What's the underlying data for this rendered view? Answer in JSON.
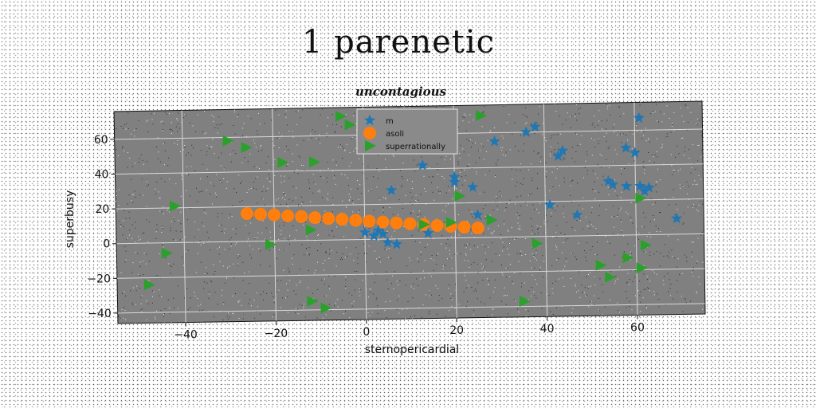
{
  "page": {
    "title": "1 parenetic"
  },
  "chart_data": {
    "type": "scatter",
    "title": "uncontagious",
    "xlabel": "sternopericardial",
    "ylabel": "superbusy",
    "xlim": [
      -55,
      75
    ],
    "ylim": [
      -46,
      76
    ],
    "xticks": [
      -40,
      -20,
      0,
      20,
      40,
      60
    ],
    "yticks": [
      -40,
      -20,
      0,
      20,
      40,
      60
    ],
    "grid": true,
    "legend_position": "top-center",
    "background_color": "#808080",
    "series": [
      {
        "name": "m",
        "marker": "star",
        "color": "#1f77b4",
        "points": [
          [
            5,
            -2
          ],
          [
            4,
            3
          ],
          [
            3,
            5
          ],
          [
            0,
            4
          ],
          [
            2,
            2
          ],
          [
            13,
            42
          ],
          [
            20,
            35
          ],
          [
            20,
            32
          ],
          [
            24,
            29
          ],
          [
            6,
            28
          ],
          [
            29,
            55
          ],
          [
            36,
            60
          ],
          [
            38,
            63
          ],
          [
            43,
            46
          ],
          [
            44,
            49
          ],
          [
            41,
            18
          ],
          [
            47,
            12
          ],
          [
            54,
            31
          ],
          [
            55,
            29
          ],
          [
            58,
            28
          ],
          [
            58,
            50
          ],
          [
            60,
            47
          ],
          [
            61,
            28
          ],
          [
            62,
            25
          ],
          [
            63,
            27
          ],
          [
            61,
            67
          ],
          [
            69,
            9
          ],
          [
            25,
            13
          ],
          [
            14,
            3
          ],
          [
            7,
            -3
          ]
        ]
      },
      {
        "name": "asoli",
        "marker": "circle",
        "color": "#ff7f0e",
        "points": [
          [
            -26,
            16
          ],
          [
            -23,
            15.5
          ],
          [
            -20,
            15
          ],
          [
            -17,
            14.3
          ],
          [
            -14,
            13.7
          ],
          [
            -11,
            13
          ],
          [
            -8,
            12.4
          ],
          [
            -5,
            11.8
          ],
          [
            -2,
            11.1
          ],
          [
            1,
            10.5
          ],
          [
            4,
            9.8
          ],
          [
            7,
            9.2
          ],
          [
            10,
            8.6
          ],
          [
            13,
            8
          ],
          [
            16,
            7.3
          ],
          [
            19,
            6.7
          ],
          [
            22,
            6.1
          ],
          [
            25,
            5.5
          ]
        ]
      },
      {
        "name": "superrationally",
        "marker": "triangle-right",
        "color": "#2ca02c",
        "points": [
          [
            -48,
            -24
          ],
          [
            -44,
            -6
          ],
          [
            -42,
            21
          ],
          [
            -30,
            58
          ],
          [
            -26,
            54
          ],
          [
            -21,
            -2
          ],
          [
            -18,
            45
          ],
          [
            -11,
            45
          ],
          [
            -12,
            6
          ],
          [
            -12,
            -35
          ],
          [
            -9,
            -39
          ],
          [
            -5,
            71
          ],
          [
            -3,
            66
          ],
          [
            13,
            8
          ],
          [
            19,
            9
          ],
          [
            21,
            24
          ],
          [
            28,
            10
          ],
          [
            26,
            70
          ],
          [
            38,
            -4
          ],
          [
            35,
            -37
          ],
          [
            52,
            -17
          ],
          [
            54,
            -24
          ],
          [
            58,
            -13
          ],
          [
            61,
            -19
          ],
          [
            62,
            -6
          ],
          [
            61,
            21
          ]
        ]
      }
    ]
  }
}
